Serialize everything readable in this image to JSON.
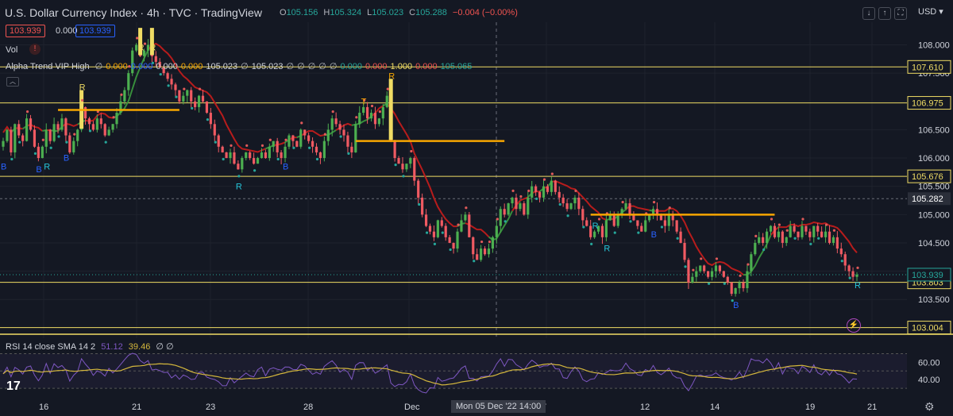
{
  "header": {
    "title": "U.S. Dollar Currency Index · 4h · TVC · TradingView",
    "ohlc": {
      "o_label": "O",
      "o": "105.156",
      "h_label": "H",
      "h": "105.324",
      "l_label": "L",
      "l": "105.023",
      "c_label": "C",
      "c": "105.288",
      "change": "−0.004 (−0.00%)"
    },
    "bid": "103.939",
    "spread": "0.000",
    "ask": "103.939",
    "currency": "USD",
    "buttons": {
      "down": "↓",
      "up": "↑",
      "expand": "⛶"
    }
  },
  "vol_label": "Vol",
  "vol_warning": "!",
  "indicator": {
    "name": "Alpha Trend VIP High",
    "values": [
      "∅",
      "0.000",
      "0.000",
      "0.000",
      "0.000",
      "105.023",
      "∅",
      "105.023",
      "∅",
      "∅",
      "∅",
      "∅",
      "∅",
      "0.000",
      "0.000",
      "1.000",
      "0.000",
      "105.065"
    ]
  },
  "rsi": {
    "label": "RSI 14 close SMA 14 2",
    "rsi_value": "51.12",
    "sma_value": "39.46",
    "extra": "∅ ∅"
  },
  "crosshair_label": "Mon 05 Dec '22   14:00",
  "logo": "17",
  "colors": {
    "bg": "#141823",
    "up": "#4caf50",
    "down": "#f05a62",
    "signal": "#e64a19",
    "trend_red": "#b71c1c",
    "trend_green": "#388e3c",
    "hline": "#f0dc64",
    "rsi": "#7e57c2",
    "rsi_sma": "#d4b73c"
  },
  "chart_data": {
    "type": "candlestick",
    "symbol": "DXY",
    "timeframe": "4h",
    "y_axis_ticks": [
      "108.000",
      "107.500",
      "107.000",
      "106.500",
      "106.000",
      "105.500",
      "105.000",
      "104.500",
      "104.000",
      "103.500"
    ],
    "ylim": [
      102.9,
      108.4
    ],
    "x_axis_ticks": [
      "16",
      "21",
      "23",
      "28",
      "Dec",
      "7",
      "12",
      "14",
      "19",
      "21"
    ],
    "horizontal_levels": [
      {
        "price": 107.61,
        "label": "107.610"
      },
      {
        "price": 106.975,
        "label": "106.975"
      },
      {
        "price": 105.676,
        "label": "105.676"
      },
      {
        "price": 103.803,
        "label": "103.803"
      },
      {
        "price": 103.004,
        "label": "103.004"
      }
    ],
    "dashed_level": {
      "price": 105.282,
      "label": "105.282"
    },
    "current_price": {
      "price": 103.939,
      "label": "103.939"
    },
    "signal_labels": [
      {
        "text": "B",
        "color": "blue",
        "bar": 0,
        "price": 105.8
      },
      {
        "text": "B",
        "color": "blue",
        "bar": 9,
        "price": 105.75
      },
      {
        "text": "R",
        "color": "teal",
        "bar": 11,
        "price": 105.8
      },
      {
        "text": "B",
        "color": "blue",
        "bar": 16,
        "price": 105.95
      },
      {
        "text": "R",
        "color": "yellow",
        "bar": 20,
        "price": 107.2
      },
      {
        "text": "R",
        "color": "yellow",
        "bar": 35,
        "price": 107.9
      },
      {
        "text": "R",
        "color": "yellow",
        "bar": 38,
        "price": 107.9
      },
      {
        "text": "R",
        "color": "teal",
        "bar": 60,
        "price": 105.45
      },
      {
        "text": "B",
        "color": "blue",
        "bar": 72,
        "price": 105.8
      },
      {
        "text": "T",
        "color": "orange",
        "bar": 92,
        "price": 106.95
      },
      {
        "text": "R",
        "color": "orange",
        "bar": 99,
        "price": 107.4
      },
      {
        "text": "R",
        "color": "teal",
        "bar": 151,
        "price": 104.75
      },
      {
        "text": "R",
        "color": "teal",
        "bar": 154,
        "price": 104.35
      },
      {
        "text": "B",
        "color": "blue",
        "bar": 166,
        "price": 104.6
      },
      {
        "text": "B",
        "color": "blue",
        "bar": 187,
        "price": 103.35
      },
      {
        "text": "R",
        "color": "teal",
        "bar": 220,
        "price": 103.7
      }
    ],
    "candles": {
      "description": "4h OHLC candles, ~222 bars from Nov 15 to Dec 20 2022",
      "close_path": [
        106.3,
        106.5,
        106.1,
        106.6,
        106.4,
        106.3,
        106.7,
        106.5,
        106.2,
        106.0,
        106.2,
        106.5,
        106.3,
        106.6,
        106.5,
        106.7,
        106.4,
        106.1,
        106.3,
        106.5,
        106.9,
        106.7,
        106.6,
        106.5,
        106.7,
        106.6,
        106.4,
        106.5,
        106.6,
        106.8,
        107.0,
        107.2,
        107.5,
        107.9,
        108.0,
        107.8,
        107.9,
        108.0,
        107.8,
        107.7,
        107.6,
        107.5,
        107.4,
        107.3,
        107.2,
        107.0,
        107.1,
        107.2,
        107.0,
        106.9,
        107.1,
        107.0,
        106.8,
        106.6,
        106.4,
        106.2,
        106.1,
        106.0,
        106.1,
        105.9,
        105.8,
        106.0,
        106.1,
        106.0,
        105.9,
        106.0,
        106.1,
        106.0,
        106.2,
        106.3,
        106.1,
        106.0,
        106.2,
        106.4,
        106.3,
        106.2,
        106.5,
        106.4,
        106.3,
        106.2,
        106.1,
        106.0,
        106.3,
        106.5,
        106.7,
        106.6,
        106.5,
        106.4,
        106.2,
        106.1,
        106.6,
        106.8,
        106.9,
        106.7,
        106.8,
        106.6,
        106.7,
        106.9,
        107.1,
        106.3,
        106.0,
        105.9,
        105.8,
        105.9,
        106.0,
        105.6,
        105.3,
        105.0,
        104.8,
        104.7,
        104.6,
        104.9,
        104.8,
        104.6,
        104.5,
        104.4,
        104.7,
        104.9,
        105.0,
        104.6,
        104.3,
        104.2,
        104.4,
        104.3,
        104.4,
        104.6,
        104.8,
        105.1,
        105.0,
        105.2,
        105.3,
        105.1,
        105.2,
        105.0,
        105.3,
        105.5,
        105.4,
        105.3,
        105.5,
        105.4,
        105.6,
        105.4,
        105.3,
        105.2,
        105.1,
        105.2,
        105.3,
        105.1,
        104.9,
        104.8,
        104.6,
        104.7,
        104.8,
        104.6,
        104.9,
        105.0,
        104.8,
        105.0,
        105.1,
        105.2,
        105.0,
        104.9,
        104.8,
        104.7,
        104.9,
        105.0,
        105.1,
        105.0,
        104.9,
        104.8,
        105.0,
        104.9,
        104.7,
        104.5,
        104.2,
        103.8,
        103.9,
        104.0,
        104.1,
        104.0,
        103.9,
        104.0,
        104.1,
        104.0,
        103.9,
        103.8,
        103.6,
        103.7,
        103.8,
        103.7,
        104.0,
        104.3,
        104.5,
        104.6,
        104.5,
        104.7,
        104.8,
        104.6,
        104.7,
        104.5,
        104.6,
        104.8,
        104.7,
        104.6,
        104.8,
        104.7,
        104.6,
        104.8,
        104.7,
        104.6,
        104.7,
        104.5,
        104.6,
        104.4,
        104.3,
        104.1,
        104.0,
        103.9,
        103.94
      ]
    },
    "rsi_panel": {
      "ticks": [
        "60.00",
        "40.00"
      ],
      "ylim": [
        20,
        75
      ]
    }
  }
}
